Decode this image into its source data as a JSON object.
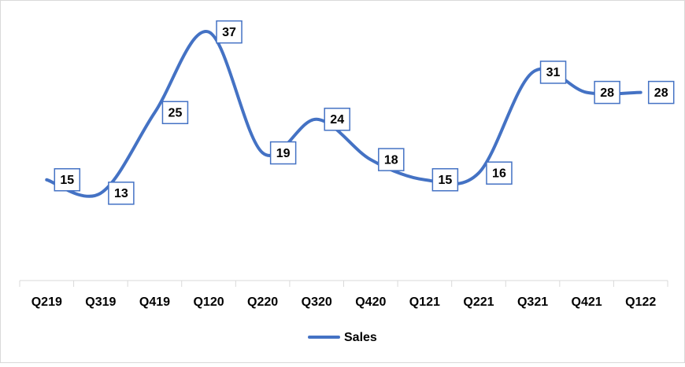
{
  "chart_data": {
    "type": "line",
    "categories": [
      "Q219",
      "Q319",
      "Q419",
      "Q120",
      "Q220",
      "Q320",
      "Q420",
      "Q121",
      "Q221",
      "Q321",
      "Q421",
      "Q122"
    ],
    "series": [
      {
        "name": "Sales",
        "color": "#4472c4",
        "values": [
          15,
          13,
          25,
          37,
          19,
          24,
          18,
          15,
          16,
          31,
          28,
          28
        ]
      }
    ],
    "ylim": [
      0,
      40
    ],
    "smooth": true,
    "data_labels": true,
    "legend": "bottom"
  }
}
